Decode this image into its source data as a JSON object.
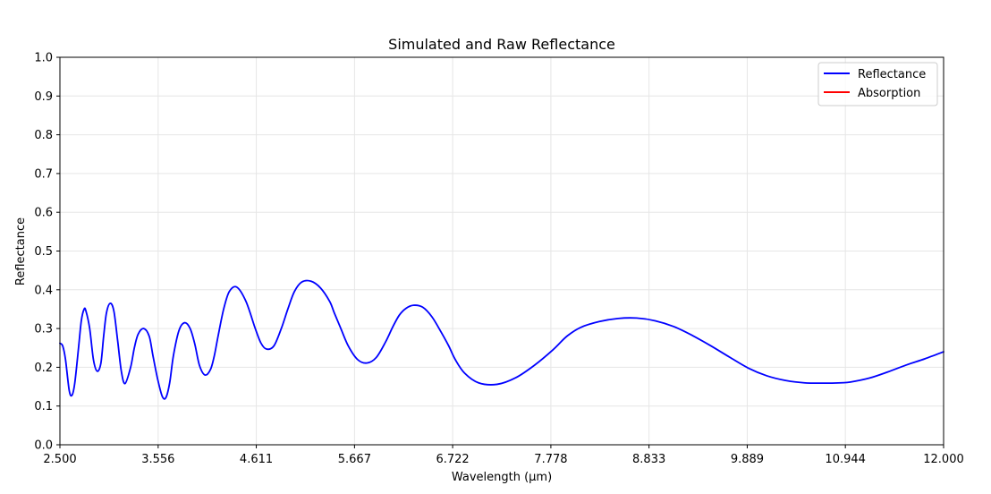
{
  "chart_data": {
    "type": "line",
    "title": "Simulated and Raw Reflectance",
    "xlabel": "Wavelength (μm)",
    "ylabel": "Reflectance",
    "xlim": [
      2.5,
      12.0
    ],
    "ylim": [
      0.0,
      1.0
    ],
    "xticks": [
      "2.500",
      "3.556",
      "4.611",
      "5.667",
      "6.722",
      "7.778",
      "8.833",
      "9.889",
      "10.944",
      "12.000"
    ],
    "yticks": [
      "0.0",
      "0.1",
      "0.2",
      "0.3",
      "0.4",
      "0.5",
      "0.6",
      "0.7",
      "0.8",
      "0.9",
      "1.0"
    ],
    "grid": true,
    "legend_position": "top-right",
    "series": [
      {
        "name": "Reflectance",
        "color": "#0000ff",
        "x": [
          2.5,
          2.53,
          2.56,
          2.6,
          2.63,
          2.66,
          2.7,
          2.73,
          2.76,
          2.78,
          2.82,
          2.86,
          2.9,
          2.94,
          2.97,
          3.0,
          3.04,
          3.08,
          3.12,
          3.16,
          3.2,
          3.26,
          3.3,
          3.34,
          3.4,
          3.46,
          3.5,
          3.55,
          3.6,
          3.64,
          3.68,
          3.72,
          3.78,
          3.84,
          3.9,
          3.95,
          4.0,
          4.06,
          4.12,
          4.16,
          4.2,
          4.26,
          4.32,
          4.4,
          4.5,
          4.6,
          4.66,
          4.72,
          4.8,
          4.88,
          4.95,
          5.02,
          5.1,
          5.2,
          5.3,
          5.4,
          5.45,
          5.52,
          5.6,
          5.7,
          5.8,
          5.9,
          6.0,
          6.08,
          6.15,
          6.22,
          6.3,
          6.4,
          6.5,
          6.6,
          6.68,
          6.75,
          6.85,
          7.0,
          7.2,
          7.4,
          7.6,
          7.8,
          7.95,
          8.1,
          8.3,
          8.5,
          8.7,
          8.9,
          9.1,
          9.3,
          9.5,
          9.7,
          9.9,
          10.1,
          10.3,
          10.5,
          10.7,
          10.9,
          11.0,
          11.2,
          11.4,
          11.6,
          11.8,
          12.0
        ],
        "values": [
          0.262,
          0.255,
          0.22,
          0.14,
          0.128,
          0.16,
          0.25,
          0.32,
          0.35,
          0.345,
          0.3,
          0.22,
          0.19,
          0.21,
          0.28,
          0.34,
          0.365,
          0.345,
          0.27,
          0.19,
          0.158,
          0.2,
          0.25,
          0.285,
          0.3,
          0.28,
          0.23,
          0.17,
          0.125,
          0.122,
          0.16,
          0.23,
          0.295,
          0.315,
          0.3,
          0.26,
          0.205,
          0.18,
          0.195,
          0.23,
          0.28,
          0.35,
          0.395,
          0.407,
          0.37,
          0.3,
          0.263,
          0.247,
          0.255,
          0.3,
          0.35,
          0.395,
          0.42,
          0.422,
          0.405,
          0.37,
          0.34,
          0.3,
          0.255,
          0.22,
          0.211,
          0.225,
          0.265,
          0.305,
          0.335,
          0.352,
          0.36,
          0.355,
          0.33,
          0.29,
          0.255,
          0.22,
          0.185,
          0.16,
          0.156,
          0.173,
          0.205,
          0.245,
          0.28,
          0.303,
          0.318,
          0.326,
          0.327,
          0.32,
          0.305,
          0.282,
          0.255,
          0.226,
          0.198,
          0.178,
          0.166,
          0.16,
          0.159,
          0.16,
          0.162,
          0.172,
          0.188,
          0.206,
          0.222,
          0.24
        ]
      },
      {
        "name": "Absorption",
        "color": "#ff0000",
        "x": [],
        "values": []
      }
    ]
  }
}
